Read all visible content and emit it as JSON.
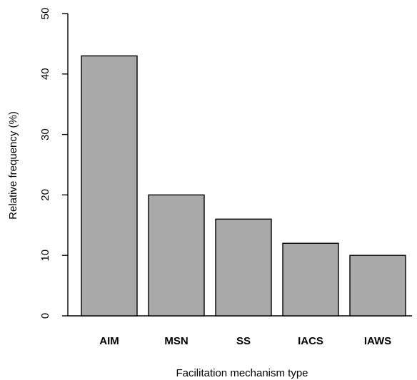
{
  "chart_data": {
    "type": "bar",
    "categories": [
      "AIM",
      "MSN",
      "SS",
      "IACS",
      "IAWS"
    ],
    "values": [
      43,
      20,
      16,
      12,
      10
    ],
    "xlabel": "Facilitation mechanism type",
    "ylabel": "Relative frequency (%)",
    "ylim": [
      0,
      50
    ],
    "yticks": [
      0,
      10,
      20,
      30,
      40,
      50
    ],
    "bar_color": "#a9a9a9",
    "grid": false,
    "legend": "none"
  }
}
